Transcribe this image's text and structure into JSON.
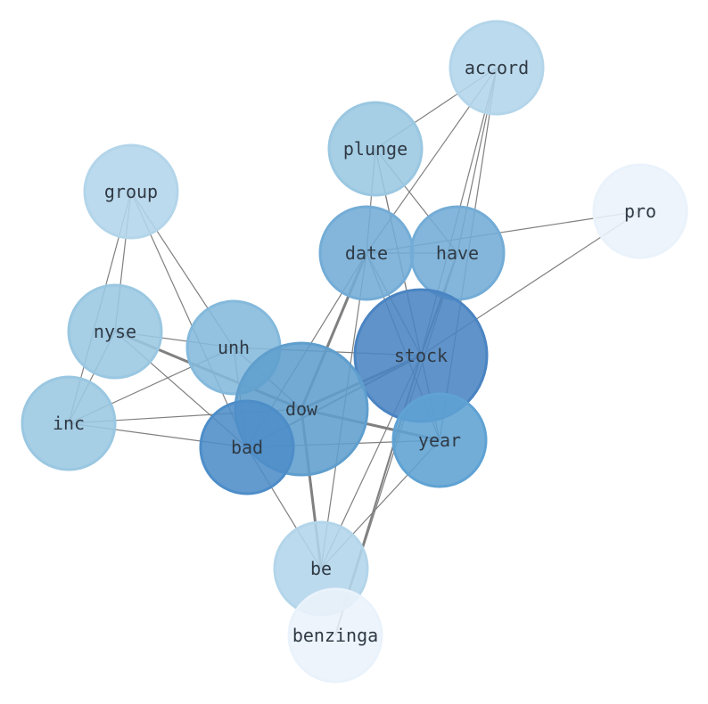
{
  "nodes": [
    {
      "id": "accord",
      "label": "accord",
      "color": "#b3d5ea",
      "size": 1
    },
    {
      "id": "plunge",
      "label": "plunge",
      "color": "#9ac7e1",
      "size": 1
    },
    {
      "id": "group",
      "label": "group",
      "color": "#b3d5ea",
      "size": 1
    },
    {
      "id": "pro",
      "label": "pro",
      "color": "#eaf2fb",
      "size": 1
    },
    {
      "id": "date",
      "label": "date",
      "color": "#73acd6",
      "size": 1
    },
    {
      "id": "have",
      "label": "have",
      "color": "#73acd6",
      "size": 1
    },
    {
      "id": "nyse",
      "label": "nyse",
      "color": "#9ac7e1",
      "size": 1
    },
    {
      "id": "unh",
      "label": "unh",
      "color": "#84b9dc",
      "size": 1
    },
    {
      "id": "stock",
      "label": "stock",
      "color": "#4a84c2",
      "size": 2
    },
    {
      "id": "dow",
      "label": "dow",
      "color": "#5f9ecd",
      "size": 2
    },
    {
      "id": "inc",
      "label": "inc",
      "color": "#9ac7e1",
      "size": 1
    },
    {
      "id": "bad",
      "label": "bad",
      "color": "#4d8dc8",
      "size": 1
    },
    {
      "id": "year",
      "label": "year",
      "color": "#5fa2d3",
      "size": 1
    },
    {
      "id": "be",
      "label": "be",
      "color": "#b3d5ea",
      "size": 1
    },
    {
      "id": "benzinga",
      "label": "benzinga",
      "color": "#eaf2fb",
      "size": 1
    }
  ],
  "edges": [
    {
      "source": "accord",
      "target": "plunge",
      "weight": 1
    },
    {
      "source": "accord",
      "target": "date",
      "weight": 1
    },
    {
      "source": "accord",
      "target": "stock",
      "weight": 1
    },
    {
      "source": "accord",
      "target": "have",
      "weight": 1
    },
    {
      "source": "accord",
      "target": "year",
      "weight": 1
    },
    {
      "source": "plunge",
      "target": "have",
      "weight": 1
    },
    {
      "source": "plunge",
      "target": "stock",
      "weight": 1
    },
    {
      "source": "plunge",
      "target": "date",
      "weight": 1
    },
    {
      "source": "plunge",
      "target": "year",
      "weight": 1
    },
    {
      "source": "group",
      "target": "nyse",
      "weight": 1
    },
    {
      "source": "group",
      "target": "inc",
      "weight": 1
    },
    {
      "source": "group",
      "target": "unh",
      "weight": 1
    },
    {
      "source": "group",
      "target": "bad",
      "weight": 1
    },
    {
      "source": "pro",
      "target": "date",
      "weight": 1
    },
    {
      "source": "pro",
      "target": "stock",
      "weight": 1
    },
    {
      "source": "date",
      "target": "have",
      "weight": 1
    },
    {
      "source": "date",
      "target": "stock",
      "weight": 1
    },
    {
      "source": "date",
      "target": "dow",
      "weight": 3
    },
    {
      "source": "date",
      "target": "bad",
      "weight": 1
    },
    {
      "source": "date",
      "target": "year",
      "weight": 1
    },
    {
      "source": "date",
      "target": "be",
      "weight": 1
    },
    {
      "source": "have",
      "target": "stock",
      "weight": 2
    },
    {
      "source": "have",
      "target": "benzinga",
      "weight": 1
    },
    {
      "source": "nyse",
      "target": "unh",
      "weight": 1
    },
    {
      "source": "nyse",
      "target": "dow",
      "weight": 3
    },
    {
      "source": "nyse",
      "target": "bad",
      "weight": 1
    },
    {
      "source": "nyse",
      "target": "inc",
      "weight": 1
    },
    {
      "source": "unh",
      "target": "stock",
      "weight": 1
    },
    {
      "source": "unh",
      "target": "dow",
      "weight": 1
    },
    {
      "source": "unh",
      "target": "bad",
      "weight": 1
    },
    {
      "source": "unh",
      "target": "inc",
      "weight": 1
    },
    {
      "source": "stock",
      "target": "dow",
      "weight": 3
    },
    {
      "source": "stock",
      "target": "bad",
      "weight": 2
    },
    {
      "source": "stock",
      "target": "year",
      "weight": 1
    },
    {
      "source": "stock",
      "target": "be",
      "weight": 1
    },
    {
      "source": "stock",
      "target": "benzinga",
      "weight": 2
    },
    {
      "source": "dow",
      "target": "inc",
      "weight": 1
    },
    {
      "source": "dow",
      "target": "year",
      "weight": 3
    },
    {
      "source": "dow",
      "target": "be",
      "weight": 3
    },
    {
      "source": "inc",
      "target": "bad",
      "weight": 1
    },
    {
      "source": "bad",
      "target": "year",
      "weight": 1
    },
    {
      "source": "bad",
      "target": "be",
      "weight": 1
    },
    {
      "source": "year",
      "target": "be",
      "weight": 1
    }
  ]
}
